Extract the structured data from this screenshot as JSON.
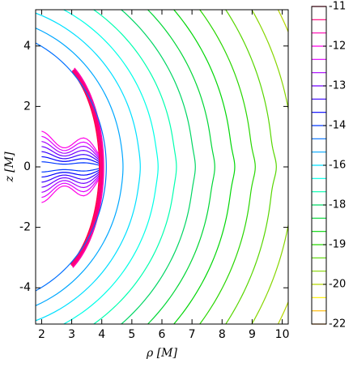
{
  "chart_data": {
    "type": "contour",
    "xlabel": "ρ [M]",
    "ylabel": "z [M]",
    "xlim": [
      1.8,
      10.2
    ],
    "ylim": [
      -5.2,
      5.2
    ],
    "xticks": [
      2,
      3,
      4,
      5,
      6,
      7,
      8,
      9,
      10
    ],
    "yticks": [
      -4,
      -2,
      0,
      2,
      4
    ],
    "colormap": "rainbow",
    "levels": [
      -11,
      -11.33,
      -11.67,
      -12,
      -12.33,
      -12.67,
      -13,
      -13.33,
      -13.67,
      -14,
      -14.67,
      -15.33,
      -16,
      -16.67,
      -17.33,
      -18,
      -18.33,
      -18.67,
      -19,
      -19.33,
      -19.67,
      -20,
      -20.67,
      -21.33,
      -22
    ],
    "colorbar_ticks": [
      -11,
      -12,
      -13,
      -14,
      -16,
      -18,
      -19,
      -20,
      -22
    ]
  }
}
